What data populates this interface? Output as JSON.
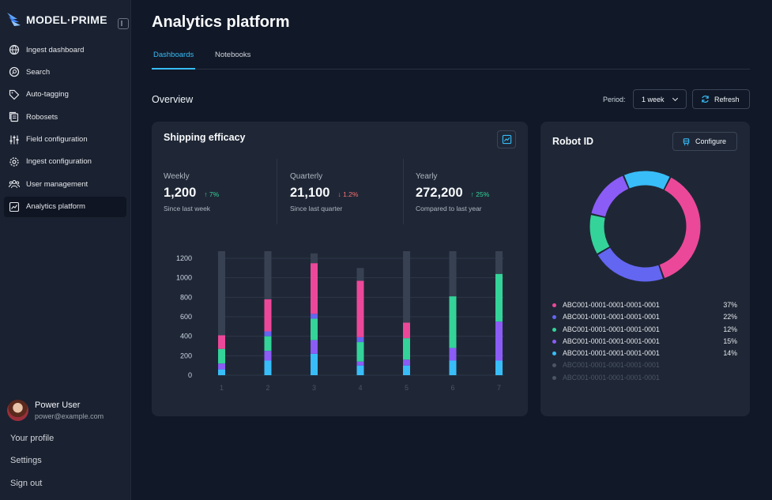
{
  "brand": {
    "name": "MODEL·PRIME"
  },
  "sidebar": {
    "items": [
      {
        "label": "Ingest dashboard",
        "icon": "globe-icon"
      },
      {
        "label": "Search",
        "icon": "search-icon"
      },
      {
        "label": "Auto-tagging",
        "icon": "tag-icon"
      },
      {
        "label": "Robosets",
        "icon": "stack-icon"
      },
      {
        "label": "Field configuration",
        "icon": "sliders-icon"
      },
      {
        "label": "Ingest configuration",
        "icon": "gear-icon"
      },
      {
        "label": "User management",
        "icon": "users-icon"
      },
      {
        "label": "Analytics platform",
        "icon": "chart-icon",
        "active": true
      }
    ],
    "user": {
      "name": "Power User",
      "email": "power@example.com"
    },
    "links": {
      "profile": "Your profile",
      "settings": "Settings",
      "signout": "Sign out"
    }
  },
  "header": {
    "title": "Analytics platform"
  },
  "tabs": [
    {
      "label": "Dashboards",
      "active": true
    },
    {
      "label": "Notebooks"
    }
  ],
  "overview": {
    "title": "Overview",
    "period_label": "Period:",
    "period_value": "1 week",
    "refresh_label": "Refresh"
  },
  "shipping": {
    "title": "Shipping efficacy",
    "stats": [
      {
        "label": "Weekly",
        "value": "1,200",
        "delta": "7%",
        "direction": "up",
        "sub": "Since last week"
      },
      {
        "label": "Quarterly",
        "value": "21,100",
        "delta": "1.2%",
        "direction": "down",
        "sub": "Since last quarter"
      },
      {
        "label": "Yearly",
        "value": "272,200",
        "delta": "25%",
        "direction": "up",
        "sub": "Compared to last year"
      }
    ]
  },
  "robot": {
    "title": "Robot ID",
    "configure_label": "Configure",
    "legend": [
      {
        "label": "ABC001-0001-0001-0001-0001",
        "pct": "37%",
        "color": "#ec4899"
      },
      {
        "label": "ABC001-0001-0001-0001-0001",
        "pct": "22%",
        "color": "#6366f1"
      },
      {
        "label": "ABC001-0001-0001-0001-0001",
        "pct": "12%",
        "color": "#34d399"
      },
      {
        "label": "ABC001-0001-0001-0001-0001",
        "pct": "15%",
        "color": "#8b5cf6"
      },
      {
        "label": "ABC001-0001-0001-0001-0001",
        "pct": "14%",
        "color": "#38bdf8"
      },
      {
        "label": "ABC001-0001-0001-0001-0001",
        "pct": "",
        "color": "#4b5563",
        "dim": true
      },
      {
        "label": "ABC001-0001-0001-0001-0001",
        "pct": "",
        "color": "#4b5563",
        "dim": true
      }
    ]
  },
  "chart_data": [
    {
      "type": "bar",
      "stacked": true,
      "categories": [
        "1",
        "2",
        "3",
        "4",
        "5",
        "6",
        "7"
      ],
      "ylim": [
        0,
        1300
      ],
      "yticks": [
        0,
        200,
        400,
        600,
        800,
        1000,
        1200
      ],
      "grid": true,
      "series": [
        {
          "color": "#38bdf8",
          "values": [
            60,
            150,
            220,
            100,
            100,
            150,
            150
          ]
        },
        {
          "color": "#8b5cf6",
          "values": [
            60,
            100,
            140,
            40,
            60,
            130,
            400
          ]
        },
        {
          "color": "#34d399",
          "values": [
            150,
            150,
            220,
            200,
            220,
            530,
            490
          ]
        },
        {
          "color": "#6366f1",
          "values": [
            0,
            50,
            50,
            50,
            0,
            0,
            0
          ]
        },
        {
          "color": "#ec4899",
          "values": [
            140,
            330,
            520,
            580,
            160,
            0,
            0
          ]
        },
        {
          "color": "#374151",
          "values": [
            890,
            520,
            100,
            130,
            760,
            490,
            260
          ]
        }
      ]
    },
    {
      "type": "pie",
      "donut": true,
      "slices": [
        {
          "value": 37,
          "color": "#ec4899"
        },
        {
          "value": 22,
          "color": "#6366f1"
        },
        {
          "value": 12,
          "color": "#34d399"
        },
        {
          "value": 15,
          "color": "#8b5cf6"
        },
        {
          "value": 14,
          "color": "#38bdf8"
        }
      ]
    }
  ]
}
